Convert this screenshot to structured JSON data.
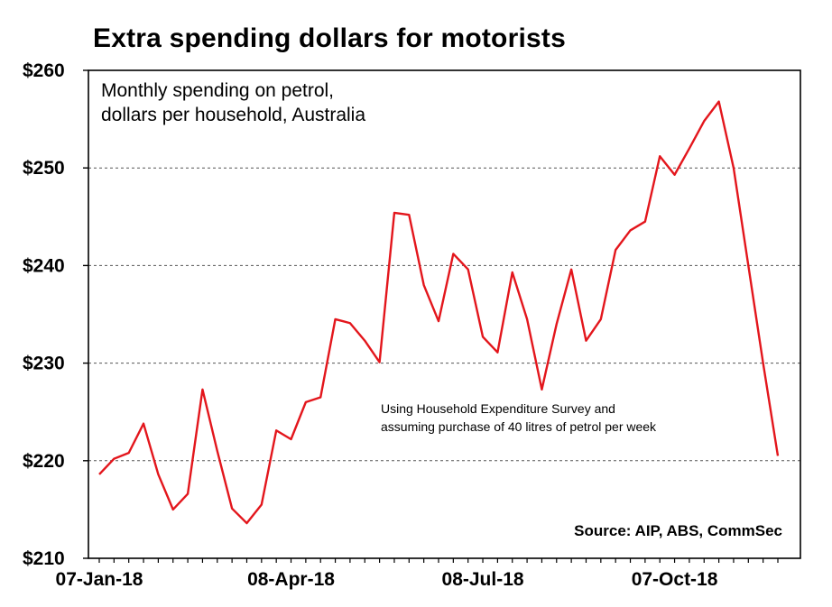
{
  "chart_data": {
    "type": "line",
    "title": "Extra spending dollars for motorists",
    "subtitle_lines": [
      "Monthly spending on petrol,",
      "dollars per household, Australia"
    ],
    "annotation_lines": [
      "Using Household Expenditure Survey and",
      "assuming purchase of 40 litres of petrol per week"
    ],
    "source": "Source: AIP, ABS, CommSec",
    "xlabel": "",
    "ylabel": "",
    "ylim": [
      210,
      260
    ],
    "y_ticks": [
      210,
      220,
      230,
      240,
      250,
      260
    ],
    "y_tick_labels": [
      "$210",
      "$220",
      "$230",
      "$240",
      "$250",
      "$260"
    ],
    "x_tick_labels": [
      "07-Jan-18",
      "08-Apr-18",
      "08-Jul-18",
      "07-Oct-18"
    ],
    "x_tick_index": [
      0,
      13,
      26,
      39
    ],
    "grid": "horizontal dashed",
    "line_color": "#e3161c",
    "series": [
      {
        "values": [
          218.6,
          220.2,
          220.8,
          223.8,
          218.6,
          215.0,
          216.6,
          227.3,
          221.0,
          215.1,
          213.6,
          215.5,
          223.1,
          222.2,
          226.0,
          226.5,
          234.5,
          234.1,
          232.3,
          230.1,
          245.4,
          245.2,
          238.0,
          234.3,
          241.2,
          239.6,
          232.7,
          231.1,
          239.3,
          234.5,
          227.3,
          234.0,
          239.6,
          232.3,
          234.5,
          241.6,
          243.6,
          244.5,
          251.2,
          249.3,
          252.0,
          254.8,
          256.8,
          250.0,
          240.0,
          230.0,
          220.5
        ]
      }
    ]
  }
}
